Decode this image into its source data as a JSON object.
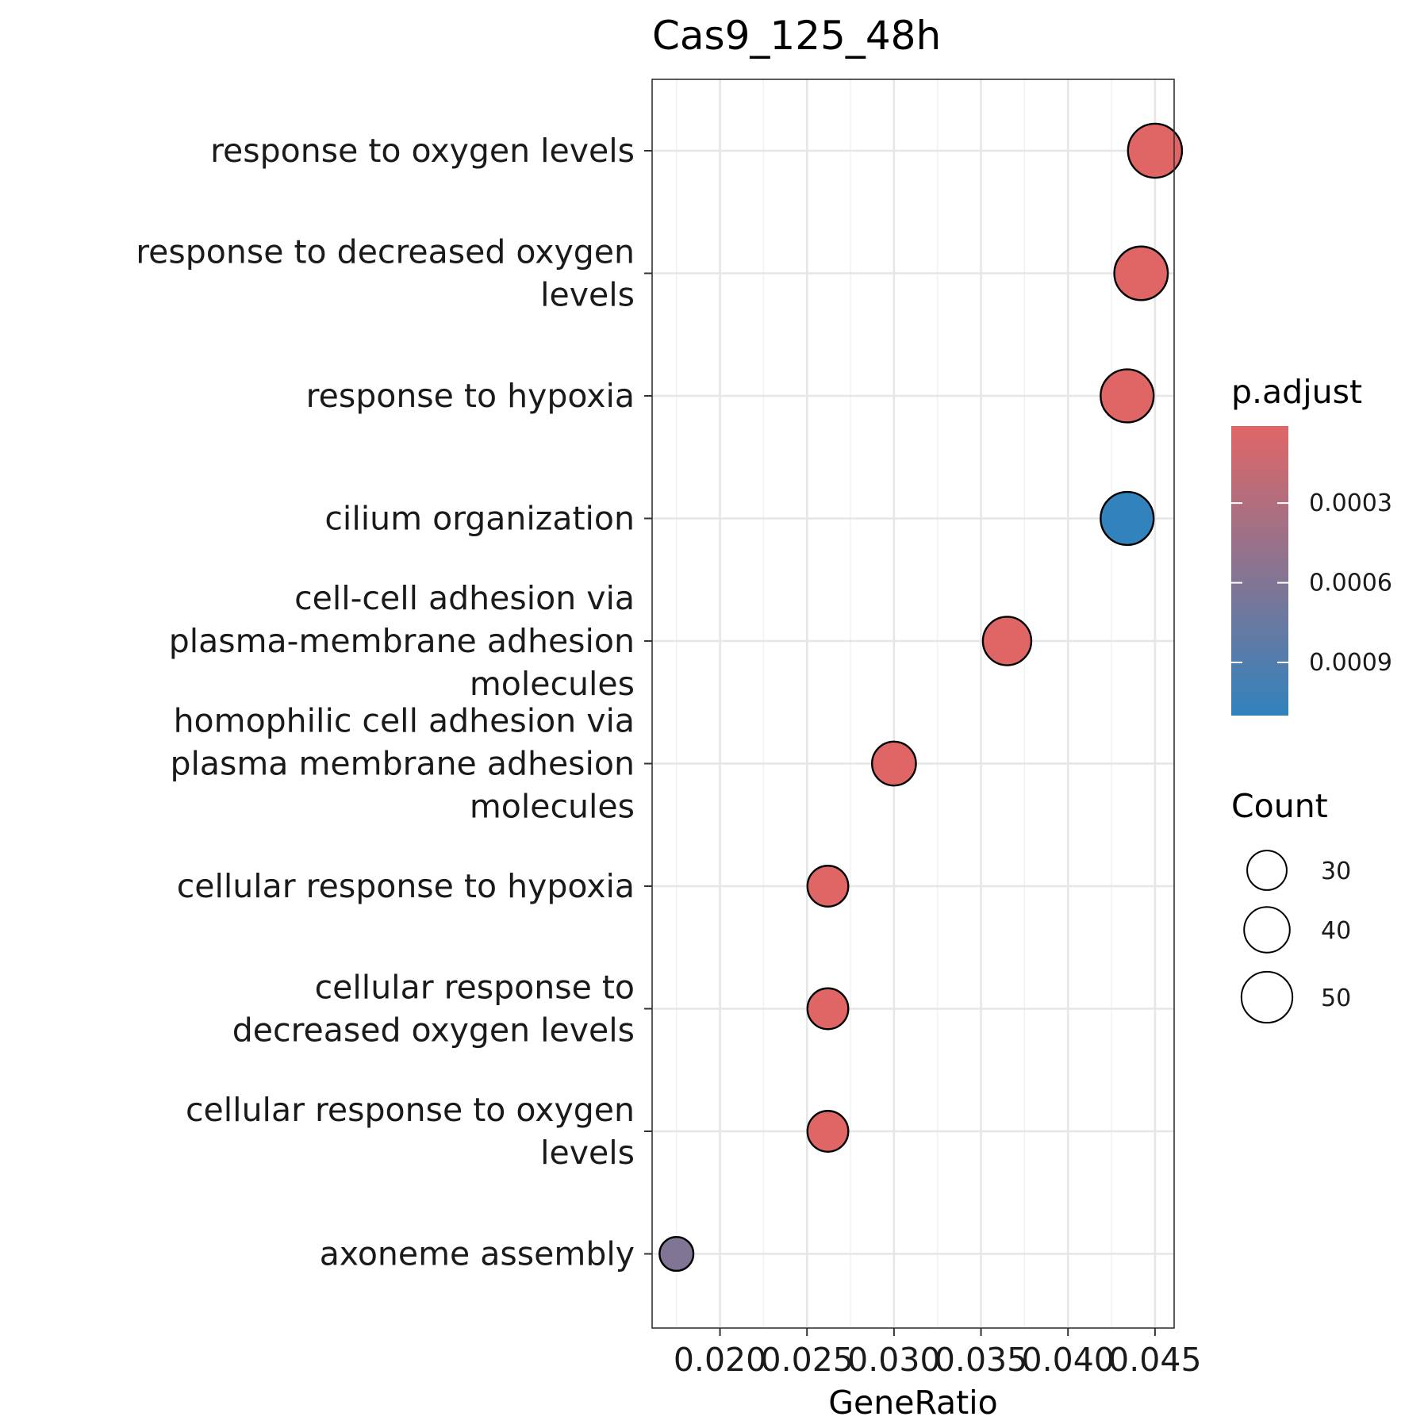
{
  "chart_data": {
    "type": "scatter",
    "title": "Cas9_125_48h",
    "xlabel": "GeneRatio",
    "ylabel": "",
    "xlim": [
      0.0161,
      0.0461
    ],
    "x_ticks": [
      0.02,
      0.025,
      0.03,
      0.035,
      0.04,
      0.045
    ],
    "x_tick_labels": [
      "0.020",
      "0.025",
      "0.030",
      "0.035",
      "0.040",
      "0.045"
    ],
    "grid": true,
    "categories": [
      "response to oxygen levels",
      "response to decreased oxygen levels",
      "response to hypoxia",
      "cilium organization",
      "cell-cell adhesion via plasma-membrane adhesion molecules",
      "homophilic cell adhesion via plasma membrane adhesion molecules",
      "cellular response to hypoxia",
      "cellular response to decreased oxygen levels",
      "cellular response to oxygen levels",
      "axoneme assembly"
    ],
    "category_lines": [
      [
        "response to oxygen levels"
      ],
      [
        "response to decreased oxygen",
        "levels"
      ],
      [
        "response to hypoxia"
      ],
      [
        "cilium organization"
      ],
      [
        "cell-cell adhesion via",
        "plasma-membrane adhesion",
        "molecules"
      ],
      [
        "homophilic cell adhesion via",
        "plasma membrane adhesion",
        "molecules"
      ],
      [
        "cellular response to hypoxia"
      ],
      [
        "cellular response to",
        "decreased oxygen levels"
      ],
      [
        "cellular response to oxygen",
        "levels"
      ],
      [
        "axoneme assembly"
      ]
    ],
    "points": [
      {
        "x": 0.045,
        "count": 56,
        "p_adjust": 1e-05
      },
      {
        "x": 0.0442,
        "count": 55,
        "p_adjust": 1e-05
      },
      {
        "x": 0.0434,
        "count": 54,
        "p_adjust": 1e-05
      },
      {
        "x": 0.0434,
        "count": 54,
        "p_adjust": 0.0011
      },
      {
        "x": 0.0365,
        "count": 45,
        "p_adjust": 1e-05
      },
      {
        "x": 0.03,
        "count": 37,
        "p_adjust": 1e-05
      },
      {
        "x": 0.0262,
        "count": 32,
        "p_adjust": 1e-05
      },
      {
        "x": 0.0262,
        "count": 32,
        "p_adjust": 1e-05
      },
      {
        "x": 0.0262,
        "count": 32,
        "p_adjust": 1e-05
      },
      {
        "x": 0.0175,
        "count": 22,
        "p_adjust": 0.0006
      }
    ],
    "color_legend": {
      "title": "p.adjust",
      "min": 1e-05,
      "max": 0.0011,
      "ticks": [
        0.0003,
        0.0006,
        0.0009
      ],
      "tick_labels": [
        "0.0003",
        "0.0006",
        "0.0009"
      ],
      "low_color": "#E06666",
      "high_color": "#3182BD"
    },
    "size_legend": {
      "title": "Count",
      "values": [
        30,
        40,
        50
      ],
      "labels": [
        "30",
        "40",
        "50"
      ]
    },
    "legend_placement": "right"
  }
}
